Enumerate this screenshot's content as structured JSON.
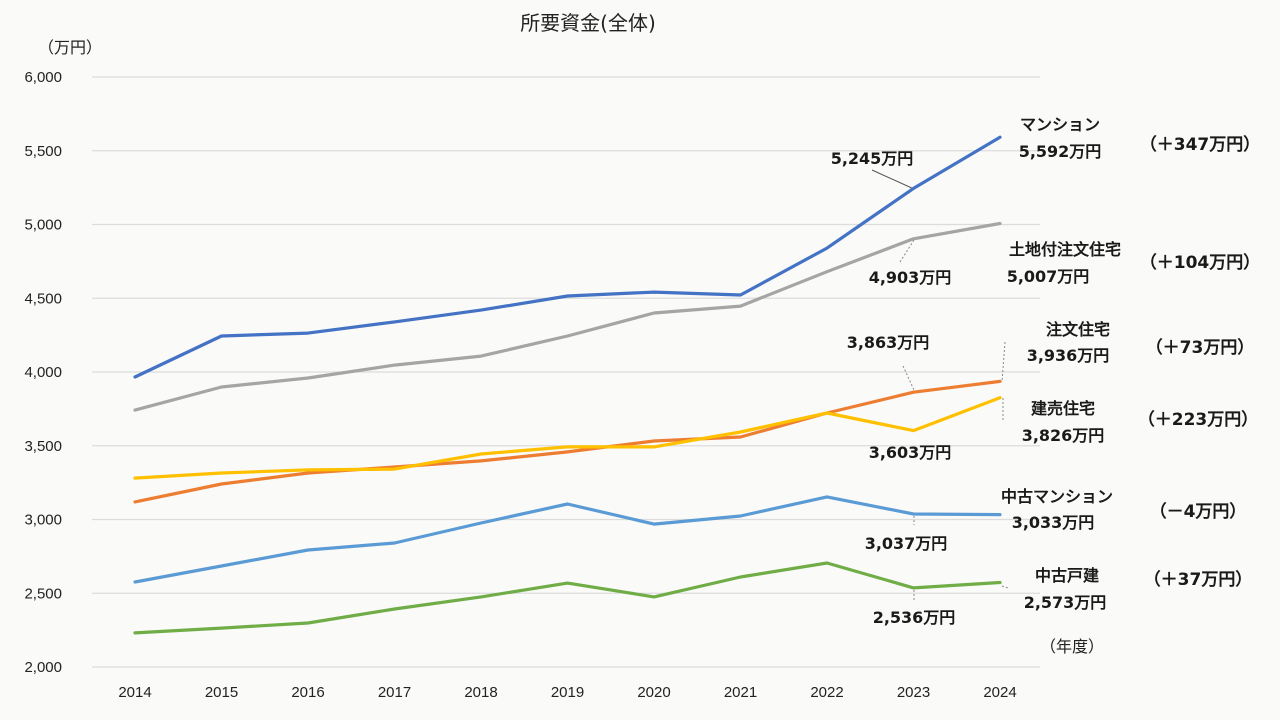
{
  "chart_data": {
    "type": "line",
    "title": "所要資金(全体)",
    "ylabel": "（万円）",
    "xlabel": "（年度）",
    "ylim": [
      2000,
      6000
    ],
    "yticks": [
      2000,
      2500,
      3000,
      3500,
      4000,
      4500,
      5000,
      5500,
      6000
    ],
    "ytick_labels": [
      "2,000",
      "2,500",
      "3,000",
      "3,500",
      "4,000",
      "4,500",
      "5,000",
      "5,500",
      "6,000"
    ],
    "grid": true,
    "x": [
      "2014",
      "2015",
      "2016",
      "2017",
      "2018",
      "2019",
      "2020",
      "2021",
      "2022",
      "2023",
      "2024"
    ],
    "series": [
      {
        "name": "マンション",
        "color": "#4472c4",
        "values": [
          3966,
          4244,
          4264,
          4340,
          4420,
          4515,
          4542,
          4522,
          4840,
          5245,
          5592
        ],
        "label_2023": "5,245万円",
        "label_2024": "5,592万円",
        "delta": "（＋347万円）"
      },
      {
        "name": "土地付注文住宅",
        "color": "#a5a5a5",
        "values": [
          3742,
          3898,
          3959,
          4047,
          4108,
          4244,
          4400,
          4447,
          4680,
          4903,
          5007
        ],
        "label_2023": "4,903万円",
        "label_2024": "5,007万円",
        "delta": "（＋104万円）"
      },
      {
        "name": "注文住宅",
        "color": "#ed7d31",
        "values": [
          3119,
          3241,
          3315,
          3356,
          3397,
          3458,
          3532,
          3559,
          3722,
          3863,
          3936
        ],
        "label_2023": "3,863万円",
        "label_2024": "3,936万円",
        "delta": "（＋73万円）"
      },
      {
        "name": "建売住宅",
        "color": "#ffc000",
        "values": [
          3281,
          3315,
          3336,
          3342,
          3444,
          3492,
          3492,
          3593,
          3722,
          3603,
          3826
        ],
        "label_2023": "3,603万円",
        "label_2024": "3,826万円",
        "delta": "（＋223万円）"
      },
      {
        "name": "中古マンション",
        "color": "#5b9bd5",
        "values": [
          2576,
          2685,
          2793,
          2841,
          2976,
          3105,
          2969,
          3024,
          3153,
          3037,
          3033
        ],
        "label_2023": "3,037万円",
        "label_2024": "3,033万円",
        "delta": "（－4万円）"
      },
      {
        "name": "中古戸建",
        "color": "#70ad47",
        "values": [
          2231,
          2264,
          2298,
          2393,
          2475,
          2569,
          2475,
          2610,
          2705,
          2536,
          2573
        ],
        "label_2023": "2,536万円",
        "label_2024": "2,573万円",
        "delta": "（＋37万円）"
      }
    ]
  }
}
